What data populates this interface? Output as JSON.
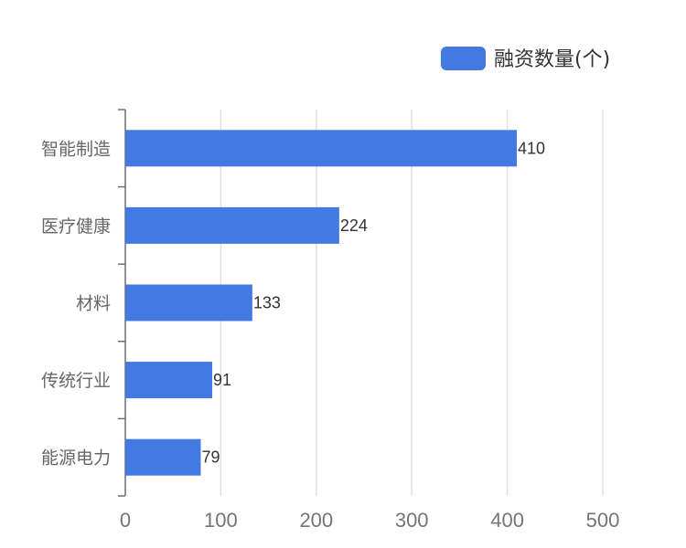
{
  "chart_data": {
    "type": "bar",
    "orientation": "horizontal",
    "categories": [
      "智能制造",
      "医疗健康",
      "材料",
      "传统行业",
      "能源电力"
    ],
    "series": [
      {
        "name": "融资数量(个)",
        "values": [
          410,
          224,
          133,
          91,
          79
        ],
        "color": "#4479E1"
      }
    ],
    "xlim": [
      0,
      500
    ],
    "x_ticks": [
      0,
      100,
      200,
      300,
      400,
      500
    ],
    "grid": true,
    "legend_position": "top-right",
    "data_labels": true
  }
}
